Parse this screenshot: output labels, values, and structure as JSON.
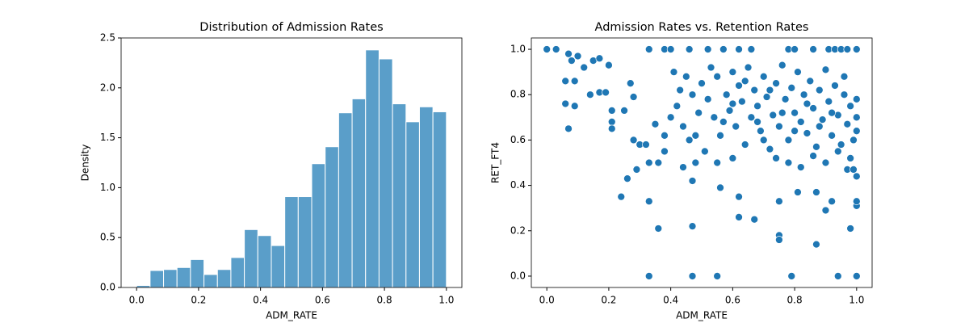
{
  "chart_data": [
    {
      "type": "histogram",
      "title": "Distribution of Admission Rates",
      "xlabel": "ADM_RATE",
      "ylabel": "Density",
      "color": "#5a9ec9",
      "bins": [
        0,
        0.0435,
        0.087,
        0.1304,
        0.1739,
        0.2174,
        0.2609,
        0.3043,
        0.3478,
        0.3913,
        0.4348,
        0.4783,
        0.5217,
        0.5652,
        0.6087,
        0.6522,
        0.6957,
        0.7391,
        0.7826,
        0.8261,
        0.8696,
        0.913,
        0.9565,
        1.0
      ],
      "values": [
        0.02,
        0.17,
        0.18,
        0.2,
        0.28,
        0.13,
        0.18,
        0.3,
        0.58,
        0.52,
        0.42,
        0.91,
        0.91,
        1.24,
        1.41,
        1.75,
        1.89,
        2.38,
        2.29,
        1.84,
        1.66,
        1.81,
        1.76
      ],
      "xlim": [
        -0.05,
        1.05
      ],
      "ylim": [
        0,
        2.5
      ],
      "xticks": [
        {
          "value": 0,
          "label": "0.0"
        },
        {
          "value": 0.2,
          "label": "0.2"
        },
        {
          "value": 0.4,
          "label": "0.4"
        },
        {
          "value": 0.6,
          "label": "0.6"
        },
        {
          "value": 0.8,
          "label": "0.8"
        },
        {
          "value": 1,
          "label": "1.0"
        }
      ],
      "yticks": [
        {
          "value": 0,
          "label": "0.0"
        },
        {
          "value": 0.5,
          "label": "0.5"
        },
        {
          "value": 1,
          "label": "1.0"
        },
        {
          "value": 1.5,
          "label": "1.5"
        },
        {
          "value": 2,
          "label": "2.0"
        },
        {
          "value": 2.5,
          "label": "2.5"
        }
      ]
    },
    {
      "type": "scatter",
      "title": "Admission Rates vs. Retention Rates",
      "xlabel": "ADM_RATE",
      "ylabel": "RET_FT4",
      "color": "#1f77b4",
      "x": [
        0.33,
        0.47,
        0.55,
        0.79,
        0.94,
        1.0,
        0.36,
        0.47,
        0.62,
        0.67,
        0.75,
        0.75,
        0.87,
        0.98,
        0.9,
        1.0,
        1.0,
        0.33,
        0.24,
        0.62,
        0.56,
        0.26,
        0.47,
        0.75,
        0.81,
        0.87,
        0.92,
        0.97,
        0.99,
        1.0,
        0,
        0.03,
        0.07,
        0.33,
        0.38,
        0.4,
        0.46,
        0.52,
        0.57,
        0.62,
        0.66,
        0.78,
        0.8,
        0.86,
        0.91,
        0.93,
        0.95,
        0.97,
        1.0,
        0.06,
        0.06,
        0.07,
        0.09,
        0.09,
        0.08,
        0.1,
        0.12,
        0.15,
        0.17,
        0.14,
        0.17,
        0.19,
        0.2,
        0.21,
        0.21,
        0.21,
        0.25,
        0.27,
        0.28,
        0.28,
        0.3,
        0.32,
        0.33,
        0.29,
        0.35,
        0.36,
        0.38,
        0.38,
        0.4,
        0.42,
        0.44,
        0.46,
        0.48,
        0.5,
        0.52,
        0.54,
        0.55,
        0.56,
        0.58,
        0.59,
        0.6,
        0.61,
        0.62,
        0.63,
        0.64,
        0.65,
        0.66,
        0.67,
        0.68,
        0.69,
        0.7,
        0.71,
        0.72,
        0.73,
        0.74,
        0.75,
        0.76,
        0.77,
        0.78,
        0.79,
        0.8,
        0.81,
        0.82,
        0.83,
        0.84,
        0.85,
        0.86,
        0.87,
        0.88,
        0.89,
        0.9,
        0.91,
        0.92,
        0.93,
        0.94,
        0.95,
        0.96,
        0.97,
        0.98,
        0.99,
        1.0,
        1.0,
        1.0,
        0.53,
        0.57,
        0.6,
        0.64,
        0.68,
        0.72,
        0.76,
        0.8,
        0.84,
        0.88,
        0.92,
        0.96,
        0.7,
        0.74,
        0.78,
        0.82,
        0.86,
        0.9,
        0.94,
        0.98,
        0.45,
        0.47,
        0.49,
        0.43,
        0.41,
        0.44,
        0.48,
        0.51,
        0.55,
        0.6
      ],
      "values": [
        0,
        0,
        0,
        0,
        0,
        0,
        0.21,
        0.22,
        0.26,
        0.25,
        0.18,
        0.16,
        0.14,
        0.21,
        0.29,
        0.31,
        0.33,
        0.33,
        0.35,
        0.35,
        0.39,
        0.43,
        0.42,
        0.33,
        0.37,
        0.37,
        0.33,
        0.47,
        0.47,
        0.44,
        1,
        1,
        0.98,
        1,
        1,
        1,
        1,
        1,
        1,
        1,
        1,
        1,
        1,
        1,
        1,
        1,
        1,
        1,
        1,
        0.86,
        0.76,
        0.65,
        0.75,
        0.86,
        0.95,
        0.97,
        0.92,
        0.95,
        0.96,
        0.8,
        0.81,
        0.81,
        0.93,
        0.73,
        0.68,
        0.65,
        0.73,
        0.85,
        0.6,
        0.79,
        0.58,
        0.58,
        0.5,
        0.47,
        0.67,
        0.5,
        0.55,
        0.62,
        0.7,
        0.75,
        0.48,
        0.6,
        0.5,
        0.85,
        0.78,
        0.7,
        0.88,
        0.62,
        0.8,
        0.73,
        0.9,
        0.66,
        0.84,
        0.77,
        0.58,
        0.92,
        0.7,
        0.82,
        0.75,
        0.64,
        0.88,
        0.79,
        0.56,
        0.71,
        0.85,
        0.66,
        0.93,
        0.78,
        0.6,
        0.83,
        0.72,
        0.9,
        0.68,
        0.8,
        0.63,
        0.86,
        0.74,
        0.57,
        0.82,
        0.69,
        0.91,
        0.77,
        0.62,
        0.84,
        0.71,
        0.58,
        0.8,
        0.67,
        0.75,
        0.6,
        0.7,
        0.78,
        0.64,
        0.92,
        0.68,
        0.76,
        0.86,
        0.68,
        0.82,
        0.72,
        0.64,
        0.76,
        0.66,
        0.72,
        0.88,
        0.6,
        0.52,
        0.5,
        0.48,
        0.53,
        0.5,
        0.55,
        0.52,
        0.88,
        0.8,
        0.72,
        0.82,
        0.9,
        0.66,
        0.62,
        0.55,
        0.5,
        0.52
      ],
      "xlim": [
        -0.05,
        1.05
      ],
      "ylim": [
        -0.05,
        1.05
      ],
      "xticks": [
        {
          "value": 0,
          "label": "0.0"
        },
        {
          "value": 0.2,
          "label": "0.2"
        },
        {
          "value": 0.4,
          "label": "0.4"
        },
        {
          "value": 0.6,
          "label": "0.6"
        },
        {
          "value": 0.8,
          "label": "0.8"
        },
        {
          "value": 1,
          "label": "1.0"
        }
      ],
      "yticks": [
        {
          "value": 0,
          "label": "0.0"
        },
        {
          "value": 0.2,
          "label": "0.2"
        },
        {
          "value": 0.4,
          "label": "0.4"
        },
        {
          "value": 0.6,
          "label": "0.6"
        },
        {
          "value": 0.8,
          "label": "0.8"
        },
        {
          "value": 1,
          "label": "1.0"
        }
      ]
    }
  ]
}
